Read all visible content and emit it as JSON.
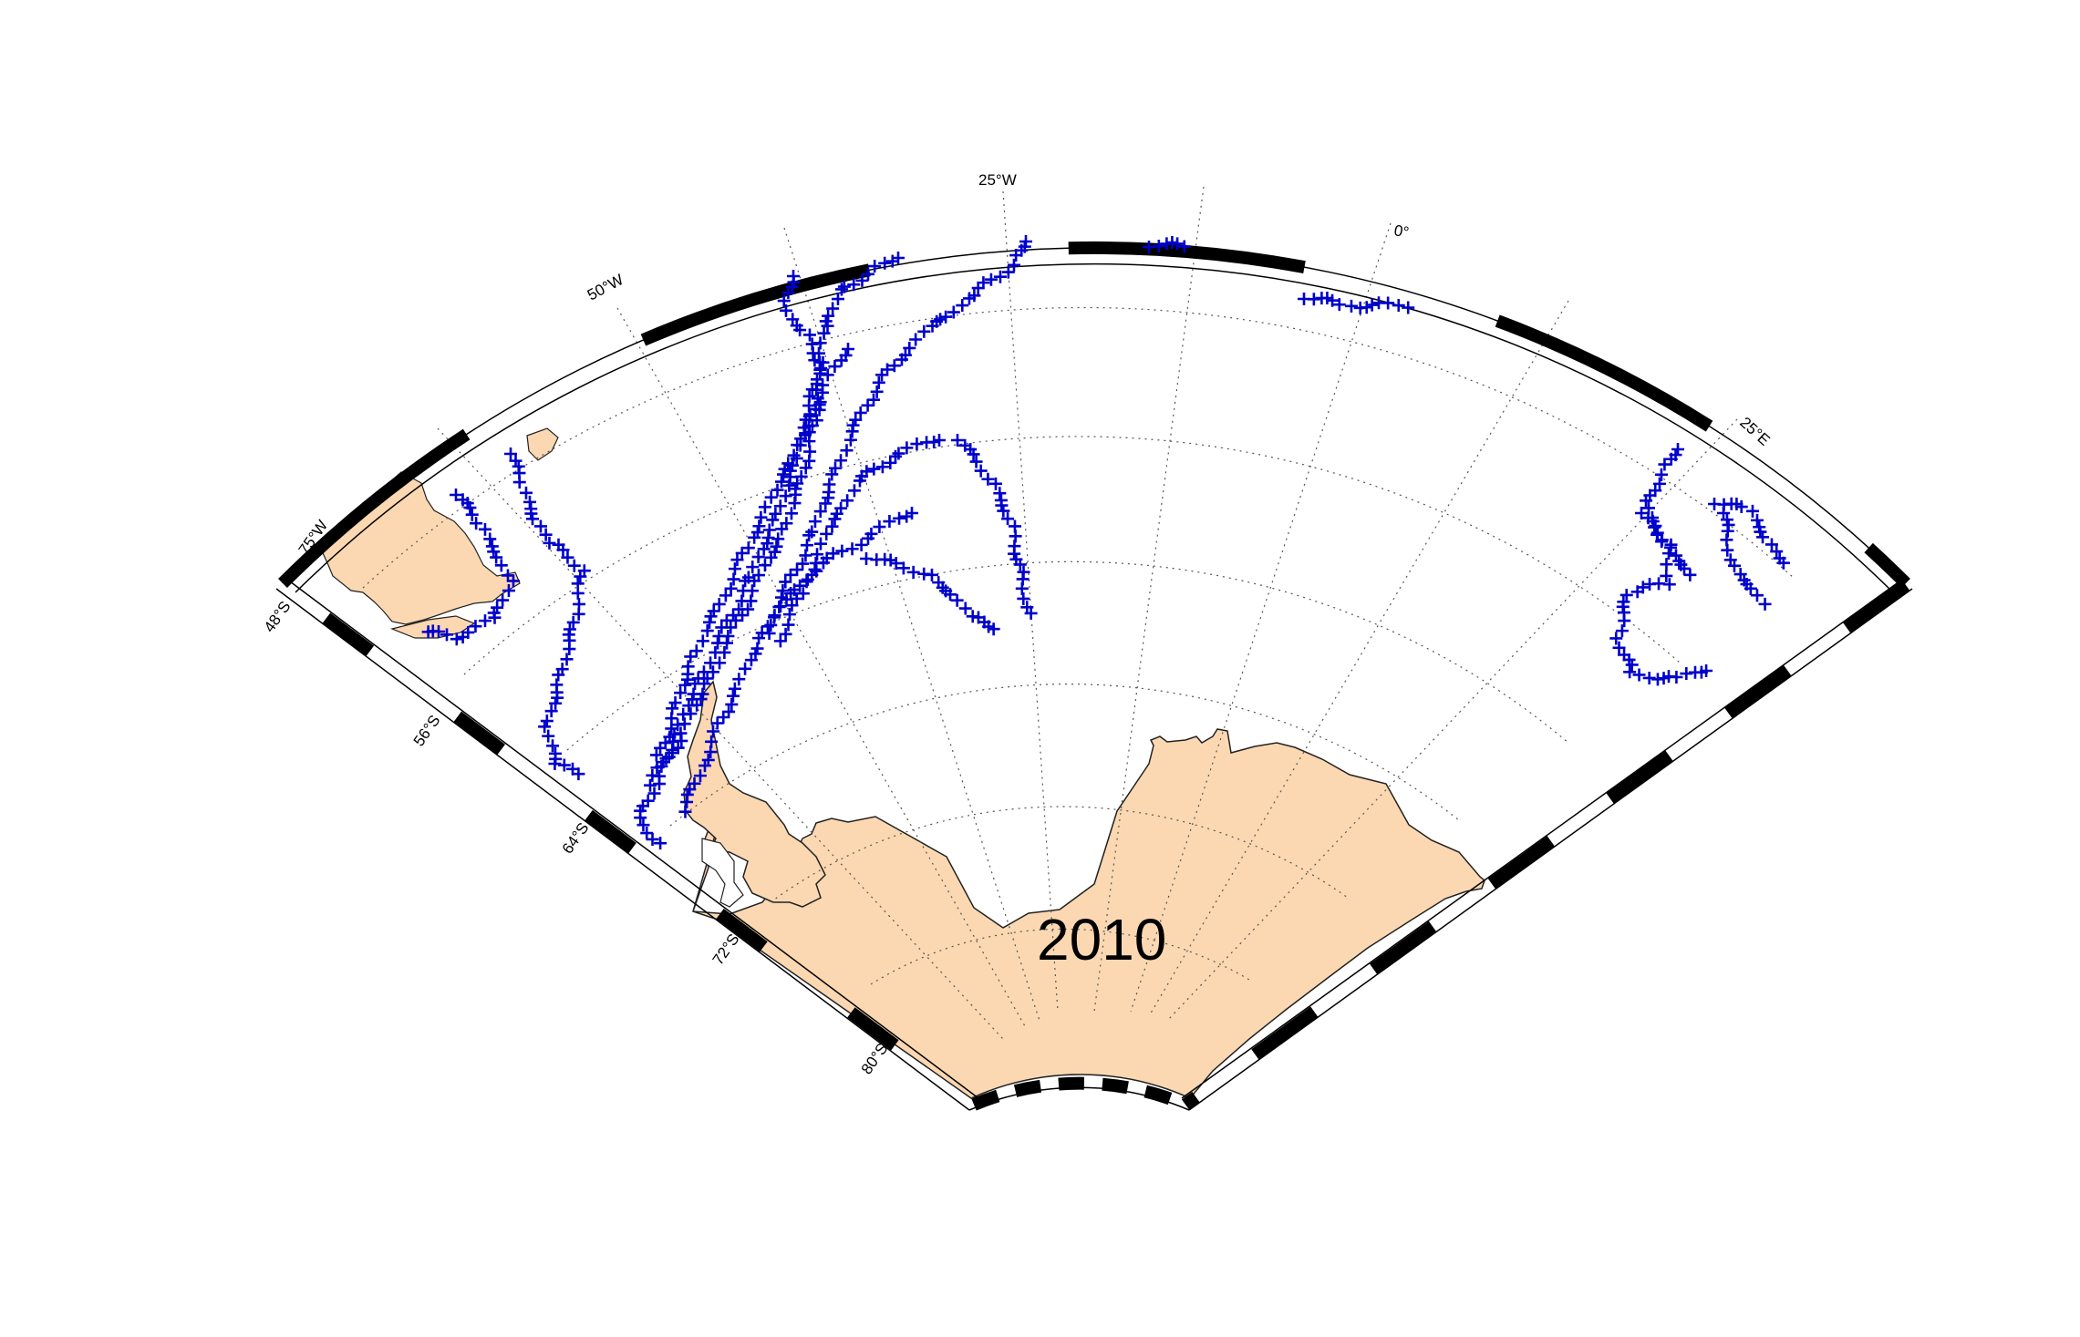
{
  "map": {
    "type": "map",
    "projection": "polar-sector",
    "year_label": "2010",
    "lon_range": [
      -80,
      40
    ],
    "lat_range": [
      -86,
      -45
    ],
    "lon_labels": [
      "75°W",
      "50°W",
      "25°W",
      "0°",
      "25°E"
    ],
    "lat_labels": [
      "48°S",
      "56°S",
      "64°S",
      "72°S",
      "80°S"
    ],
    "grid": true,
    "colors": {
      "land": "#fbd8b1",
      "coast": "#222222",
      "track_marker": "#0000cc",
      "frame": "#000000",
      "grid": "#555555"
    },
    "marker": "plus",
    "tracks_description": "Seal telemetry positions marked with blue plus signs"
  }
}
